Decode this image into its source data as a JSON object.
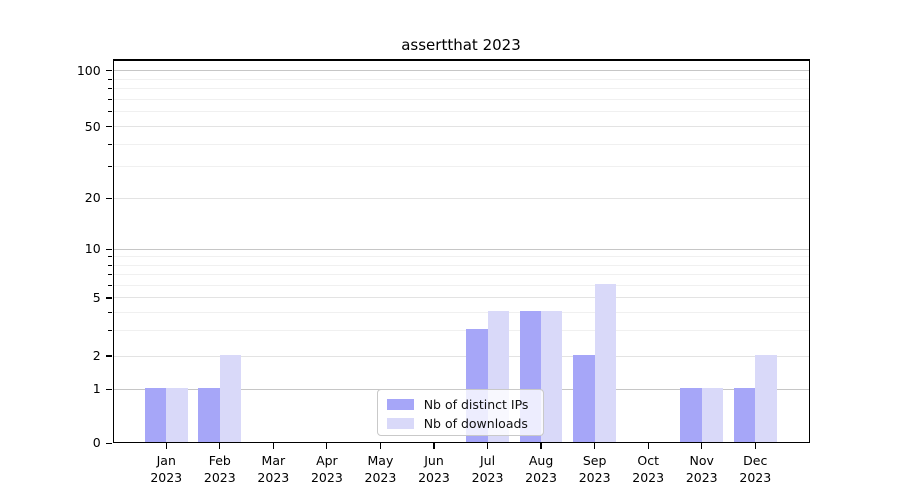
{
  "title": "assertthat 2023",
  "chart_data": {
    "type": "bar",
    "title": "assertthat 2023",
    "x": [
      "Jan 2023",
      "Feb 2023",
      "Mar 2023",
      "Apr 2023",
      "May 2023",
      "Jun 2023",
      "Jul 2023",
      "Aug 2023",
      "Sep 2023",
      "Oct 2023",
      "Nov 2023",
      "Dec 2023"
    ],
    "x_tick_months": [
      "Jan",
      "Feb",
      "Mar",
      "Apr",
      "May",
      "Jun",
      "Jul",
      "Aug",
      "Sep",
      "Oct",
      "Nov",
      "Dec"
    ],
    "x_tick_year": "2023",
    "series": [
      {
        "name": "Nb of distinct IPs",
        "color": "#a6a6f8",
        "values": [
          1,
          1,
          0,
          0,
          0,
          0,
          3,
          4,
          2,
          0,
          1,
          1
        ]
      },
      {
        "name": "Nb of downloads",
        "color": "#d9d9f9",
        "values": [
          1,
          2,
          0,
          0,
          0,
          0,
          4,
          4,
          6,
          0,
          1,
          2
        ]
      }
    ],
    "y_ticks": [
      0,
      1,
      2,
      5,
      10,
      20,
      50,
      100
    ],
    "y_minor_ticks": [
      3,
      4,
      6,
      7,
      8,
      9,
      30,
      40,
      60,
      70,
      80,
      90
    ],
    "y_scale": "log-like",
    "ylim": [
      0,
      115
    ],
    "grid": true,
    "legend_position": "inside lower center",
    "colors": {
      "bar_dark": "#a6a6f8",
      "bar_light": "#d9d9f9",
      "grid_major": "#c6c6c6",
      "grid_labeled": "#e3e3e3",
      "grid_minor": "#f0f0f0",
      "axis": "#000000"
    }
  }
}
